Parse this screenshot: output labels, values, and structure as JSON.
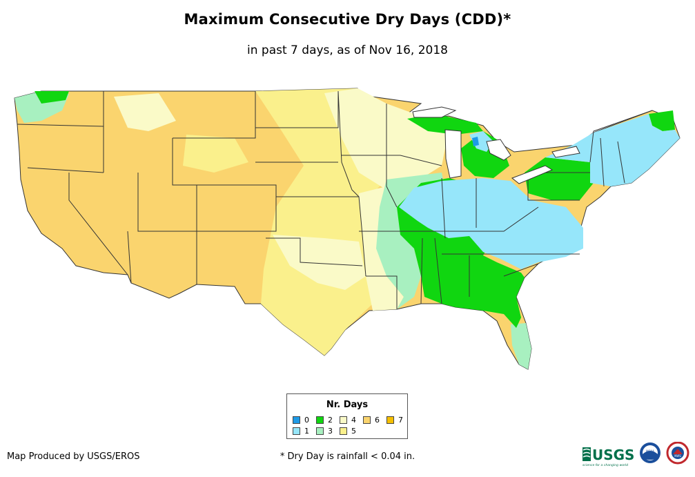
{
  "title": "Maximum Consecutive Dry Days (CDD)*",
  "subtitle": "in past 7 days, as of Nov 16, 2018",
  "legend": {
    "title": "Nr. Days",
    "items": [
      {
        "label": "0",
        "color": "#1e9ae6"
      },
      {
        "label": "1",
        "color": "#96e6fa"
      },
      {
        "label": "2",
        "color": "#10d610"
      },
      {
        "label": "3",
        "color": "#a8f0c0"
      },
      {
        "label": "4",
        "color": "#fafac8"
      },
      {
        "label": "5",
        "color": "#faf08c"
      },
      {
        "label": "6",
        "color": "#fad46e"
      },
      {
        "label": "7",
        "color": "#f5bf00"
      }
    ]
  },
  "footer": {
    "credit": "Map Produced by USGS/EROS",
    "footnote": "* Dry Day is rainfall < 0.04 in."
  },
  "logos": {
    "usgs": "USGS",
    "usgs_tagline": "science for a changing world",
    "noaa": "NOAA",
    "nws": "NWS"
  },
  "colors": {
    "state_border": "#333333",
    "water": "#ffffff"
  }
}
